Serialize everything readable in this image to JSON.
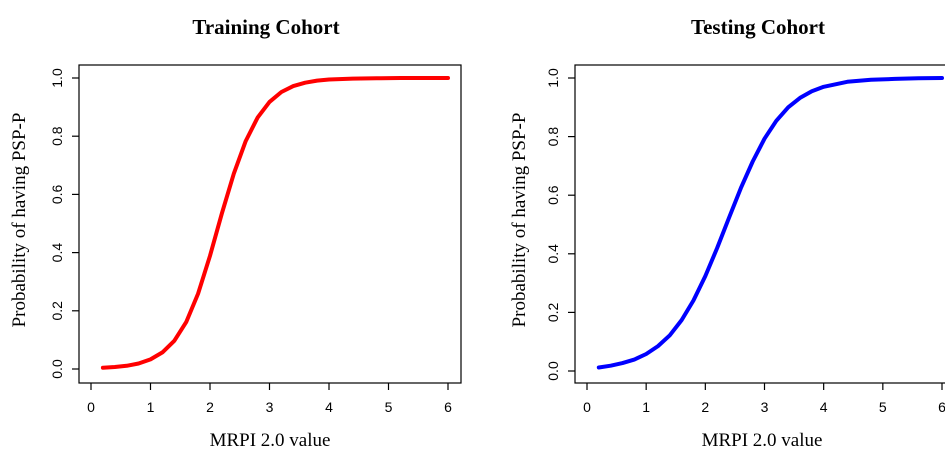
{
  "chart_data": [
    {
      "type": "line",
      "title": "Training Cohort",
      "xlabel": "MRPI 2.0 value",
      "ylabel": "Probability of having PSP-P",
      "xlim": [
        0,
        6
      ],
      "ylim": [
        0,
        1
      ],
      "xticks": [
        0,
        1,
        2,
        3,
        4,
        5,
        6
      ],
      "yticks": [
        0.0,
        0.2,
        0.4,
        0.6,
        0.8,
        1.0
      ],
      "xtick_labels": [
        "0",
        "1",
        "2",
        "3",
        "4",
        "5",
        "6"
      ],
      "ytick_labels": [
        "0.0",
        "0.2",
        "0.4",
        "0.6",
        "0.8",
        "1.0"
      ],
      "grid": false,
      "series": [
        {
          "color": "#ff0000",
          "x": [
            0.2,
            0.4,
            0.6,
            0.8,
            1.0,
            1.2,
            1.4,
            1.6,
            1.8,
            2.0,
            2.2,
            2.4,
            2.6,
            2.8,
            3.0,
            3.2,
            3.4,
            3.6,
            3.8,
            4.0,
            4.4,
            4.8,
            5.2,
            5.6,
            6.0
          ],
          "y": [
            0.004,
            0.007,
            0.011,
            0.019,
            0.033,
            0.057,
            0.097,
            0.161,
            0.259,
            0.389,
            0.535,
            0.671,
            0.783,
            0.864,
            0.918,
            0.952,
            0.972,
            0.984,
            0.991,
            0.995,
            0.998,
            0.999,
            1.0,
            1.0,
            1.0
          ]
        }
      ]
    },
    {
      "type": "line",
      "title": "Testing Cohort",
      "xlabel": "MRPI 2.0 value",
      "ylabel": "Probability of having PSP-P",
      "xlim": [
        0,
        6
      ],
      "ylim": [
        0,
        1
      ],
      "xticks": [
        0,
        1,
        2,
        3,
        4,
        5,
        6
      ],
      "yticks": [
        0.0,
        0.2,
        0.4,
        0.6,
        0.8,
        1.0
      ],
      "xtick_labels": [
        "0",
        "1",
        "2",
        "3",
        "4",
        "5",
        "6"
      ],
      "ytick_labels": [
        "0.0",
        "0.2",
        "0.4",
        "0.6",
        "0.8",
        "1.0"
      ],
      "grid": false,
      "series": [
        {
          "color": "#0000ff",
          "x": [
            0.2,
            0.4,
            0.6,
            0.8,
            1.0,
            1.2,
            1.4,
            1.6,
            1.8,
            2.0,
            2.2,
            2.4,
            2.6,
            2.8,
            3.0,
            3.2,
            3.4,
            3.6,
            3.8,
            4.0,
            4.4,
            4.8,
            5.2,
            5.6,
            6.0
          ],
          "y": [
            0.012,
            0.018,
            0.027,
            0.039,
            0.058,
            0.085,
            0.122,
            0.174,
            0.241,
            0.324,
            0.42,
            0.523,
            0.624,
            0.715,
            0.793,
            0.854,
            0.9,
            0.932,
            0.955,
            0.97,
            0.987,
            0.994,
            0.997,
            0.999,
            1.0
          ]
        }
      ]
    }
  ]
}
